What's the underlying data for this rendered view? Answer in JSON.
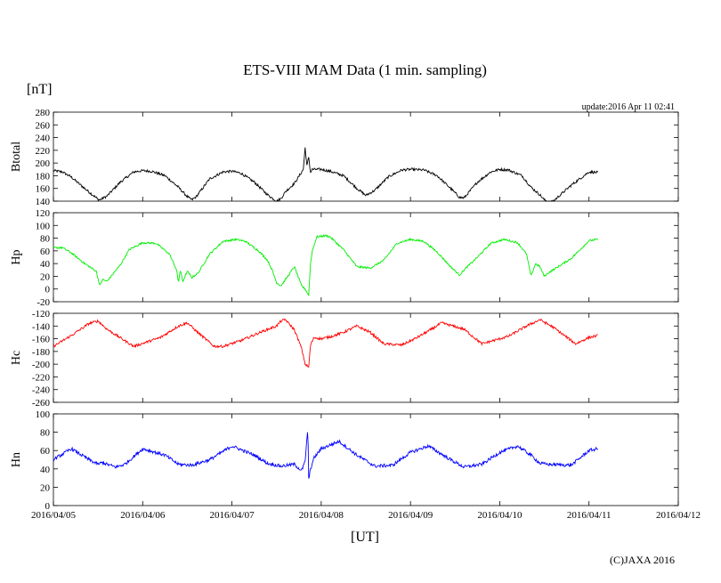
{
  "chart_data": {
    "type": "line",
    "title": "ETS-VIII MAM Data (1 min. sampling)",
    "unit_label": "[nT]",
    "update_text": "update:2016 Apr 11 02:41",
    "xlabel": "[UT]",
    "copyright": "(C)JAXA 2016",
    "x_range_days": [
      0,
      7
    ],
    "x_ticks": [
      "2016/04/05",
      "2016/04/06",
      "2016/04/07",
      "2016/04/08",
      "2016/04/09",
      "2016/04/10",
      "2016/04/11",
      "2016/04/12"
    ],
    "panels": [
      {
        "name": "Btotal",
        "color": "#000000",
        "ylim": [
          140,
          280
        ],
        "yticks": [
          140,
          160,
          180,
          200,
          220,
          240,
          260,
          280
        ],
        "noise": 2,
        "x": [
          0,
          0.1,
          0.2,
          0.35,
          0.5,
          0.52,
          0.6,
          0.75,
          0.9,
          1.0,
          1.1,
          1.25,
          1.4,
          1.5,
          1.55,
          1.6,
          1.75,
          1.9,
          2.0,
          2.1,
          2.25,
          2.4,
          2.5,
          2.55,
          2.6,
          2.7,
          2.8,
          2.82,
          2.84,
          2.86,
          2.88,
          2.9,
          3.0,
          3.1,
          3.25,
          3.4,
          3.5,
          3.6,
          3.75,
          3.9,
          4.0,
          4.15,
          4.3,
          4.45,
          4.55,
          4.6,
          4.75,
          4.9,
          5.0,
          5.1,
          5.25,
          5.35,
          5.45,
          5.5,
          5.55,
          5.6,
          5.8,
          6.0,
          6.1
        ],
        "y": [
          188,
          186,
          178,
          160,
          143,
          142,
          148,
          170,
          186,
          188,
          187,
          180,
          162,
          147,
          142,
          147,
          175,
          186,
          187,
          184,
          170,
          150,
          140,
          144,
          155,
          168,
          190,
          225,
          195,
          210,
          185,
          190,
          190,
          187,
          180,
          160,
          149,
          157,
          178,
          189,
          190,
          189,
          180,
          160,
          146,
          145,
          170,
          186,
          190,
          189,
          180,
          162,
          150,
          142,
          138,
          140,
          165,
          186,
          185
        ]
      },
      {
        "name": "Hp",
        "color": "#00ee00",
        "ylim": [
          -20,
          120
        ],
        "yticks": [
          -20,
          0,
          20,
          40,
          60,
          80,
          100,
          120
        ],
        "noise": 1.5,
        "x": [
          0,
          0.1,
          0.2,
          0.35,
          0.48,
          0.52,
          0.55,
          0.6,
          0.75,
          0.85,
          1.0,
          1.15,
          1.3,
          1.38,
          1.4,
          1.42,
          1.45,
          1.5,
          1.55,
          1.62,
          1.75,
          1.9,
          2.05,
          2.15,
          2.3,
          2.4,
          2.45,
          2.5,
          2.55,
          2.7,
          2.78,
          2.82,
          2.86,
          2.88,
          2.9,
          2.95,
          3.05,
          3.1,
          3.25,
          3.4,
          3.55,
          3.7,
          3.85,
          4.0,
          4.15,
          4.3,
          4.45,
          4.55,
          4.6,
          4.75,
          4.9,
          5.05,
          5.2,
          5.3,
          5.35,
          5.4,
          5.45,
          5.5,
          5.55,
          5.8,
          6.0,
          6.1
        ],
        "y": [
          65,
          65,
          57,
          40,
          28,
          5,
          15,
          12,
          38,
          62,
          73,
          72,
          55,
          30,
          10,
          30,
          12,
          28,
          18,
          25,
          55,
          75,
          78,
          75,
          60,
          45,
          30,
          10,
          5,
          35,
          5,
          0,
          -10,
          40,
          60,
          82,
          84,
          82,
          62,
          35,
          33,
          45,
          72,
          78,
          75,
          58,
          35,
          22,
          30,
          50,
          72,
          78,
          73,
          55,
          20,
          40,
          35,
          20,
          26,
          48,
          76,
          78
        ]
      },
      {
        "name": "Hc",
        "color": "#ff0000",
        "ylim": [
          -260,
          -120
        ],
        "yticks": [
          -260,
          -240,
          -220,
          -200,
          -180,
          -160,
          -140,
          -120
        ],
        "noise": 2,
        "x": [
          0,
          0.2,
          0.4,
          0.5,
          0.6,
          0.9,
          1.2,
          1.4,
          1.5,
          1.6,
          1.8,
          1.9,
          2.1,
          2.35,
          2.5,
          2.55,
          2.6,
          2.7,
          2.78,
          2.82,
          2.86,
          2.88,
          2.92,
          3.0,
          3.1,
          3.25,
          3.4,
          3.55,
          3.7,
          3.9,
          4.05,
          4.2,
          4.35,
          4.6,
          4.8,
          5.1,
          5.3,
          5.45,
          5.6,
          5.85,
          6.0,
          6.1
        ],
        "y": [
          -172,
          -155,
          -136,
          -132,
          -145,
          -172,
          -158,
          -140,
          -135,
          -148,
          -172,
          -172,
          -163,
          -148,
          -140,
          -132,
          -130,
          -146,
          -175,
          -200,
          -205,
          -170,
          -158,
          -160,
          -157,
          -150,
          -140,
          -150,
          -168,
          -170,
          -160,
          -148,
          -135,
          -145,
          -168,
          -156,
          -140,
          -130,
          -142,
          -168,
          -158,
          -155
        ]
      },
      {
        "name": "Hn",
        "color": "#0000ff",
        "ylim": [
          0,
          100
        ],
        "yticks": [
          0,
          20,
          40,
          60,
          80,
          100
        ],
        "noise": 1.8,
        "x": [
          0,
          0.2,
          0.4,
          0.5,
          0.55,
          0.6,
          0.7,
          0.8,
          1.0,
          1.25,
          1.4,
          1.55,
          1.75,
          2.0,
          2.25,
          2.4,
          2.55,
          2.7,
          2.78,
          2.82,
          2.85,
          2.86,
          2.88,
          2.92,
          3.0,
          3.2,
          3.4,
          3.6,
          3.8,
          4.0,
          4.2,
          4.45,
          4.6,
          4.8,
          5.0,
          5.2,
          5.35,
          5.45,
          5.55,
          5.8,
          6.0,
          6.1
        ],
        "y": [
          50,
          62,
          50,
          45,
          47,
          45,
          42,
          45,
          62,
          55,
          45,
          44,
          50,
          65,
          55,
          46,
          43,
          45,
          38,
          48,
          85,
          28,
          40,
          52,
          62,
          70,
          55,
          43,
          44,
          58,
          65,
          50,
          42,
          45,
          58,
          65,
          55,
          46,
          45,
          44,
          60,
          62
        ]
      }
    ]
  }
}
